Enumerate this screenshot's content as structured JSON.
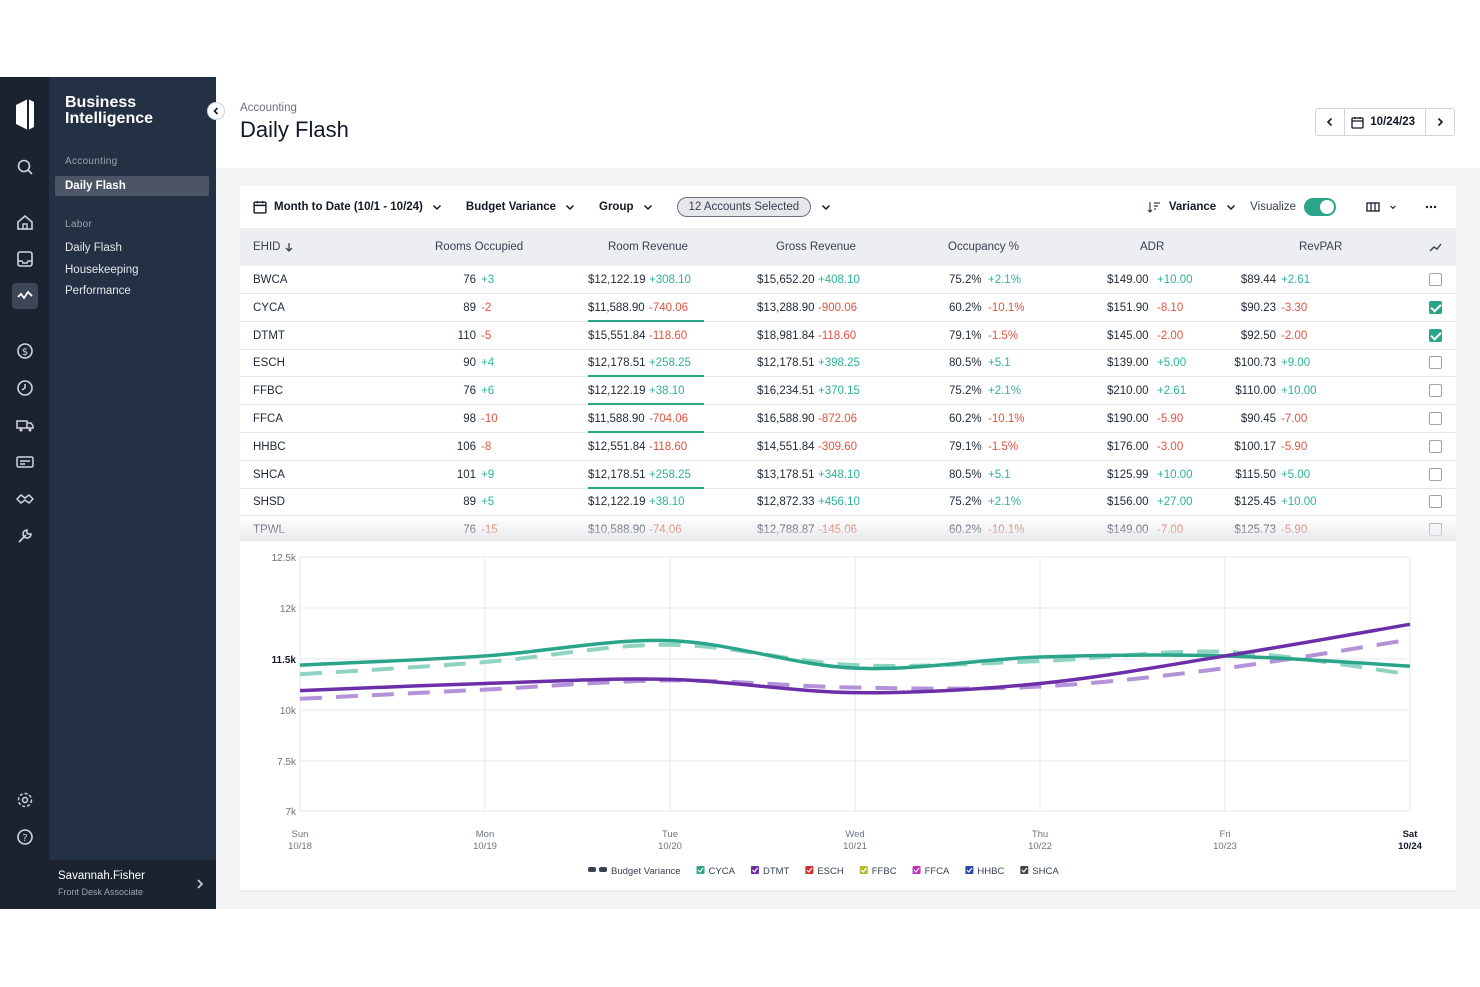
{
  "app": {
    "brand": "Business Intelligence"
  },
  "sidebar": {
    "sections": [
      {
        "label": "Accounting",
        "items": [
          {
            "label": "Daily Flash",
            "active": true
          }
        ]
      },
      {
        "label": "Labor",
        "items": [
          {
            "label": "Daily Flash"
          },
          {
            "label": "Housekeeping"
          },
          {
            "label": "Performance"
          }
        ]
      }
    ],
    "rail_icons": [
      "search-icon",
      "home-icon",
      "inbox-icon",
      "analytics-icon",
      "dollar-icon",
      "clock-icon",
      "truck-icon",
      "card-icon",
      "handshake-icon",
      "wrench-icon",
      "settings-icon",
      "help-icon"
    ],
    "user": {
      "name": "Savannah.Fisher",
      "role": "Front Desk Associate"
    }
  },
  "header": {
    "breadcrumb": "Accounting",
    "title": "Daily Flash",
    "date": "10/24/23"
  },
  "toolbar": {
    "range": "Month to Date (10/1 - 10/24)",
    "view": "Budget Variance",
    "group": "Group",
    "accounts": "12 Accounts Selected",
    "sort": "Variance",
    "visualize": "Visualize",
    "visualize_on": true
  },
  "table": {
    "columns": [
      "EHID",
      "Rooms Occupied",
      "Room Revenue",
      "Gross Revenue",
      "Occupancy %",
      "ADR",
      "RevPAR"
    ],
    "rows": [
      {
        "ehid": "BWCA",
        "rooms": "76",
        "rooms_d": "+3",
        "room_rev": "$12,122.19",
        "room_rev_d": "+308.10",
        "gross": "$15,652.20",
        "gross_d": "+408.10",
        "occ": "75.2%",
        "occ_d": "+2.1%",
        "adr": "$149.00",
        "adr_d": "+10.00",
        "revpar": "$89.44",
        "revpar_d": "+2.61",
        "checked": false,
        "ul": false
      },
      {
        "ehid": "CYCA",
        "rooms": "89",
        "rooms_d": "-2",
        "room_rev": "$11,588.90",
        "room_rev_d": "-740.06",
        "gross": "$13,288.90",
        "gross_d": "-900.06",
        "occ": "60.2%",
        "occ_d": "-10.1%",
        "adr": "$151.90",
        "adr_d": "-8.10",
        "revpar": "$90.23",
        "revpar_d": "-3.30",
        "checked": true,
        "ul": true
      },
      {
        "ehid": "DTMT",
        "rooms": "110",
        "rooms_d": "-5",
        "room_rev": "$15,551.84",
        "room_rev_d": "-118.60",
        "gross": "$18,981.84",
        "gross_d": "-118.60",
        "occ": "79.1%",
        "occ_d": "-1.5%",
        "adr": "$145.00",
        "adr_d": "-2.00",
        "revpar": "$92.50",
        "revpar_d": "-2.00",
        "checked": true,
        "ul": false
      },
      {
        "ehid": "ESCH",
        "rooms": "90",
        "rooms_d": "+4",
        "room_rev": "$12,178.51",
        "room_rev_d": "+258.25",
        "gross": "$12,178.51",
        "gross_d": "+398.25",
        "occ": "80.5%",
        "occ_d": "+5.1",
        "adr": "$139.00",
        "adr_d": "+5.00",
        "revpar": "$100.73",
        "revpar_d": "+9.00",
        "checked": false,
        "ul": true
      },
      {
        "ehid": "FFBC",
        "rooms": "76",
        "rooms_d": "+6",
        "room_rev": "$12,122.19",
        "room_rev_d": "+38.10",
        "gross": "$16,234.51",
        "gross_d": "+370.15",
        "occ": "75.2%",
        "occ_d": "+2.1%",
        "adr": "$210.00",
        "adr_d": "+2.61",
        "revpar": "$110.00",
        "revpar_d": "+10.00",
        "checked": false,
        "ul": true
      },
      {
        "ehid": "FFCA",
        "rooms": "98",
        "rooms_d": "-10",
        "room_rev": "$11,588.90",
        "room_rev_d": "-704.06",
        "gross": "$16,588.90",
        "gross_d": "-872.06",
        "occ": "60.2%",
        "occ_d": "-10.1%",
        "adr": "$190.00",
        "adr_d": "-5.90",
        "revpar": "$90.45",
        "revpar_d": "-7.00",
        "checked": false,
        "ul": true
      },
      {
        "ehid": "HHBC",
        "rooms": "106",
        "rooms_d": "-8",
        "room_rev": "$12,551.84",
        "room_rev_d": "-118.60",
        "gross": "$14,551.84",
        "gross_d": "-309.60",
        "occ": "79.1%",
        "occ_d": "-1.5%",
        "adr": "$176.00",
        "adr_d": "-3.00",
        "revpar": "$100.17",
        "revpar_d": "-5.90",
        "checked": false,
        "ul": false
      },
      {
        "ehid": "SHCA",
        "rooms": "101",
        "rooms_d": "+9",
        "room_rev": "$12,178.51",
        "room_rev_d": "+258.25",
        "gross": "$13,178.51",
        "gross_d": "+348.10",
        "occ": "80.5%",
        "occ_d": "+5.1",
        "adr": "$125.99",
        "adr_d": "+10.00",
        "revpar": "$115.50",
        "revpar_d": "+5.00",
        "checked": false,
        "ul": true
      },
      {
        "ehid": "SHSD",
        "rooms": "89",
        "rooms_d": "+5",
        "room_rev": "$12,122.19",
        "room_rev_d": "+38.10",
        "gross": "$12,872.33",
        "gross_d": "+456.10",
        "occ": "75.2%",
        "occ_d": "+2.1%",
        "adr": "$156.00",
        "adr_d": "+27.00",
        "revpar": "$125.45",
        "revpar_d": "+10.00",
        "checked": false,
        "ul": false
      },
      {
        "ehid": "TPWL",
        "rooms": "76",
        "rooms_d": "-15",
        "room_rev": "$10,588.90",
        "room_rev_d": "-74.06",
        "gross": "$12,788.87",
        "gross_d": "-145.06",
        "occ": "60.2%",
        "occ_d": "-10.1%",
        "adr": "$149.00",
        "adr_d": "-7.00",
        "revpar": "$125.73",
        "revpar_d": "-5.90",
        "checked": false,
        "ul": false
      }
    ]
  },
  "colors": {
    "pos": "#2bb39a",
    "neg": "#e0533f",
    "accent": "#2aa58a",
    "cyca": "#2aa58a",
    "dtmt": "#6b2fa8"
  },
  "chart_data": {
    "type": "line",
    "x": [
      "Sun 10/18",
      "Mon 10/19",
      "Tue 10/20",
      "Wed 10/21",
      "Thu 10/22",
      "Fri 10/23",
      "Sat 10/24"
    ],
    "x_day": [
      "Sun",
      "Mon",
      "Tue",
      "Wed",
      "Thu",
      "Fri",
      "Sat"
    ],
    "x_date": [
      "10/18",
      "10/19",
      "10/20",
      "10/21",
      "10/22",
      "10/23",
      "10/24"
    ],
    "yticks": [
      "12.5k",
      "12k",
      "11.5k",
      "10k",
      "7.5k",
      "7k"
    ],
    "ylim": [
      7000,
      12500
    ],
    "grid": true,
    "series": [
      {
        "name": "CYCA",
        "color": "#2aa58a",
        "values": [
          11440,
          11530,
          11680,
          11410,
          11520,
          11530,
          11430
        ]
      },
      {
        "name": "DTMT",
        "color": "#6b2fa8",
        "values": [
          11190,
          11260,
          11300,
          11170,
          11260,
          11530,
          11840
        ]
      },
      {
        "name": "CYCA Budget Variance",
        "color": "#8fd3c2",
        "dashed": true,
        "values": [
          11350,
          11470,
          11640,
          11440,
          11480,
          11570,
          11350
        ]
      },
      {
        "name": "DTMT Budget Variance",
        "color": "#b392d8",
        "dashed": true,
        "values": [
          11110,
          11200,
          11290,
          11220,
          11230,
          11410,
          11690
        ]
      }
    ],
    "legend": [
      {
        "label": "Budget Variance",
        "color": "#374151"
      },
      {
        "label": "CYCA",
        "color": "#2aa58a"
      },
      {
        "label": "DTMT",
        "color": "#6b2fa8"
      },
      {
        "label": "ESCH",
        "color": "#d0302a"
      },
      {
        "label": "FFBC",
        "color": "#b9b92a"
      },
      {
        "label": "FFCA",
        "color": "#c02ec4"
      },
      {
        "label": "HHBC",
        "color": "#2a45b0"
      },
      {
        "label": "SHCA",
        "color": "#444444"
      }
    ],
    "legend_position": "bottom"
  }
}
